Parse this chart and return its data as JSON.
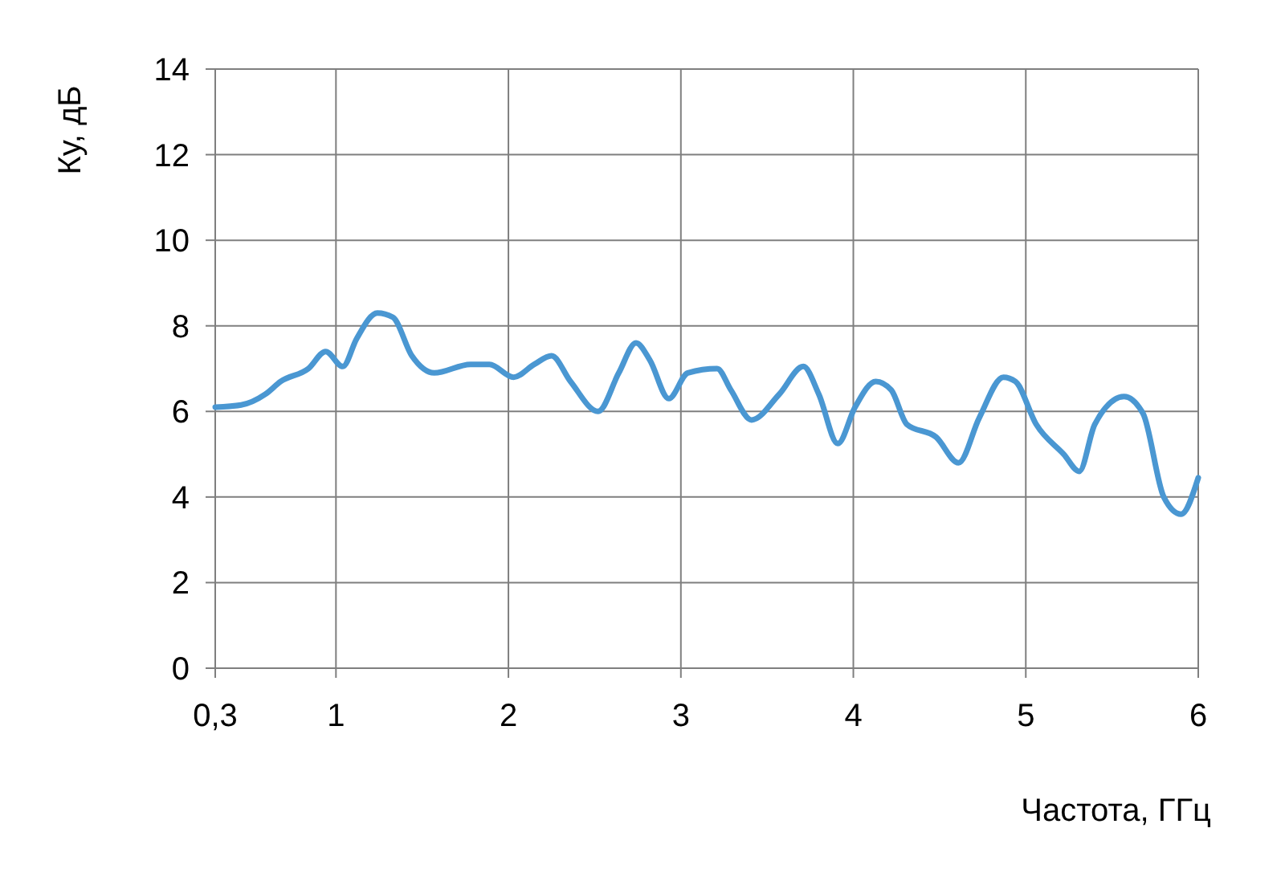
{
  "chart_data": {
    "type": "line",
    "xlabel": "Частота, ГГц",
    "ylabel": "Ку, дБ",
    "x": [
      0.3,
      0.45,
      0.59,
      0.68,
      0.84,
      0.94,
      1.04,
      1.12,
      1.24,
      1.33,
      1.44,
      1.57,
      1.78,
      1.89,
      2.03,
      2.15,
      2.25,
      2.36,
      2.52,
      2.64,
      2.74,
      2.82,
      2.93,
      3.04,
      3.21,
      3.29,
      3.41,
      3.57,
      3.71,
      3.8,
      3.91,
      4.01,
      4.13,
      4.22,
      4.31,
      4.48,
      4.61,
      4.73,
      4.87,
      4.94,
      5.06,
      5.22,
      5.31,
      5.4,
      5.57,
      5.68,
      5.8,
      5.9,
      6.0
    ],
    "series": [
      {
        "color": "#4a97d2",
        "values": [
          6.1,
          6.15,
          6.4,
          6.7,
          7.0,
          7.4,
          7.05,
          7.7,
          8.3,
          8.2,
          7.3,
          6.9,
          7.1,
          7.1,
          6.8,
          7.1,
          7.3,
          6.7,
          6.0,
          6.9,
          7.6,
          7.2,
          6.3,
          6.9,
          7.0,
          6.5,
          5.8,
          6.4,
          7.05,
          6.4,
          5.25,
          6.1,
          6.7,
          6.5,
          5.7,
          5.4,
          4.8,
          5.85,
          6.8,
          6.7,
          5.7,
          5.0,
          4.6,
          5.7,
          6.35,
          5.95,
          4.0,
          3.6,
          4.45
        ]
      }
    ],
    "xlim": [
      0.3,
      6
    ],
    "xticks": [
      {
        "value": 0.3,
        "label": "0,3"
      },
      1,
      2,
      3,
      4,
      5,
      6
    ],
    "ylim": [
      0,
      14
    ],
    "yticks": [
      0,
      2,
      4,
      6,
      8,
      10,
      12,
      14
    ],
    "grid": true,
    "marker": "none",
    "line_style": "solid"
  }
}
